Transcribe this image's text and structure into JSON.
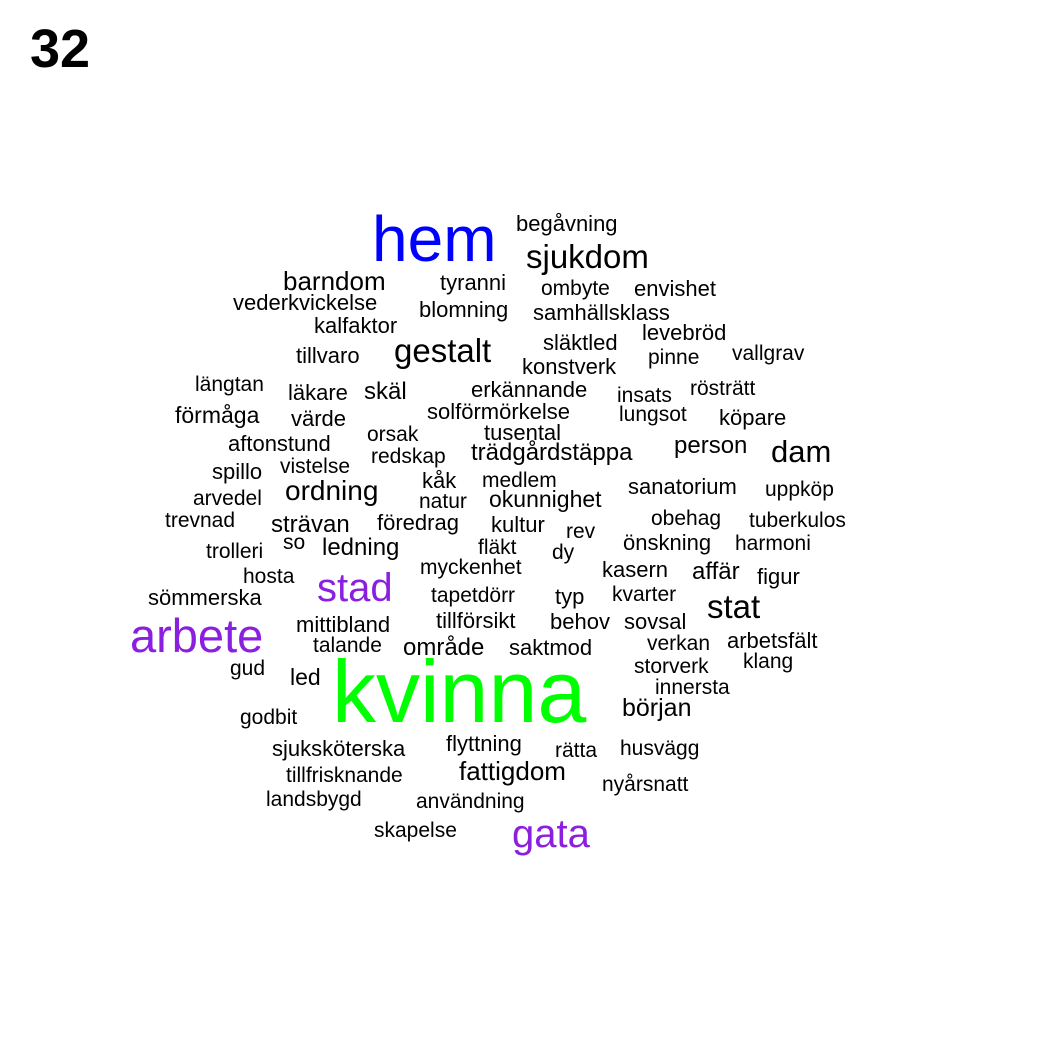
{
  "page_number": "32",
  "colors": {
    "primary": "#0000ff",
    "secondary": "#8b1fe0",
    "top": "#00ff00",
    "regular": "#000000"
  },
  "words": [
    {
      "text": "kvinna",
      "weight": 100,
      "tier": "top"
    },
    {
      "text": "hem",
      "weight": 66,
      "tier": "primary"
    },
    {
      "text": "arbete",
      "weight": 48,
      "tier": "secondary"
    },
    {
      "text": "stad",
      "weight": 42,
      "tier": "secondary"
    },
    {
      "text": "gata",
      "weight": 42,
      "tier": "secondary"
    },
    {
      "text": "sjukdom",
      "weight": 38,
      "tier": "regular"
    },
    {
      "text": "gestalt",
      "weight": 38,
      "tier": "regular"
    },
    {
      "text": "stat",
      "weight": 37,
      "tier": "regular"
    },
    {
      "text": "dam",
      "weight": 34,
      "tier": "regular"
    },
    {
      "text": "barndom",
      "weight": 30,
      "tier": "regular"
    },
    {
      "text": "ordning",
      "weight": 30,
      "tier": "regular"
    },
    {
      "text": "fattigdom",
      "weight": 29,
      "tier": "regular"
    },
    {
      "text": "början",
      "weight": 28,
      "tier": "regular"
    },
    {
      "text": "begåvning",
      "weight": 24,
      "tier": "regular"
    },
    {
      "text": "tyranni",
      "weight": 24,
      "tier": "regular"
    },
    {
      "text": "ombyte",
      "weight": 23,
      "tier": "regular"
    },
    {
      "text": "envishet",
      "weight": 24,
      "tier": "regular"
    },
    {
      "text": "vederkvickelse",
      "weight": 24,
      "tier": "regular"
    },
    {
      "text": "blomning",
      "weight": 24,
      "tier": "regular"
    },
    {
      "text": "samhällsklass",
      "weight": 24,
      "tier": "regular"
    },
    {
      "text": "kalfaktor",
      "weight": 24,
      "tier": "regular"
    },
    {
      "text": "levebröd",
      "weight": 24,
      "tier": "regular"
    },
    {
      "text": "släktled",
      "weight": 24,
      "tier": "regular"
    },
    {
      "text": "tillvaro",
      "weight": 24,
      "tier": "regular"
    },
    {
      "text": "konstverk",
      "weight": 24,
      "tier": "regular"
    },
    {
      "text": "pinne",
      "weight": 23,
      "tier": "regular"
    },
    {
      "text": "vallgrav",
      "weight": 23,
      "tier": "regular"
    },
    {
      "text": "längtan",
      "weight": 23,
      "tier": "regular"
    },
    {
      "text": "läkare",
      "weight": 24,
      "tier": "regular"
    },
    {
      "text": "skäl",
      "weight": 26,
      "tier": "regular"
    },
    {
      "text": "erkännande",
      "weight": 24,
      "tier": "regular"
    },
    {
      "text": "insats",
      "weight": 23,
      "tier": "regular"
    },
    {
      "text": "rösträtt",
      "weight": 23,
      "tier": "regular"
    },
    {
      "text": "förmåga",
      "weight": 25,
      "tier": "regular"
    },
    {
      "text": "värde",
      "weight": 24,
      "tier": "regular"
    },
    {
      "text": "solförmörkelse",
      "weight": 24,
      "tier": "regular"
    },
    {
      "text": "lungsot",
      "weight": 23,
      "tier": "regular"
    },
    {
      "text": "köpare",
      "weight": 24,
      "tier": "regular"
    },
    {
      "text": "aftonstund",
      "weight": 24,
      "tier": "regular"
    },
    {
      "text": "orsak",
      "weight": 23,
      "tier": "regular"
    },
    {
      "text": "tusental",
      "weight": 24,
      "tier": "regular"
    },
    {
      "text": "person",
      "weight": 26,
      "tier": "regular"
    },
    {
      "text": "spillo",
      "weight": 24,
      "tier": "regular"
    },
    {
      "text": "vistelse",
      "weight": 23,
      "tier": "regular"
    },
    {
      "text": "redskap",
      "weight": 23,
      "tier": "regular"
    },
    {
      "text": "trädgårdstäppa",
      "weight": 26,
      "tier": "regular"
    },
    {
      "text": "kåk",
      "weight": 24,
      "tier": "regular"
    },
    {
      "text": "medlem",
      "weight": 23,
      "tier": "regular"
    },
    {
      "text": "arvedel",
      "weight": 23,
      "tier": "regular"
    },
    {
      "text": "natur",
      "weight": 23,
      "tier": "regular"
    },
    {
      "text": "okunnighet",
      "weight": 25,
      "tier": "regular"
    },
    {
      "text": "sanatorium",
      "weight": 24,
      "tier": "regular"
    },
    {
      "text": "uppköp",
      "weight": 23,
      "tier": "regular"
    },
    {
      "text": "trevnad",
      "weight": 23,
      "tier": "regular"
    },
    {
      "text": "strävan",
      "weight": 26,
      "tier": "regular"
    },
    {
      "text": "föredrag",
      "weight": 24,
      "tier": "regular"
    },
    {
      "text": "kultur",
      "weight": 24,
      "tier": "regular"
    },
    {
      "text": "rev",
      "weight": 23,
      "tier": "regular"
    },
    {
      "text": "obehag",
      "weight": 23,
      "tier": "regular"
    },
    {
      "text": "tuberkulos",
      "weight": 23,
      "tier": "regular"
    },
    {
      "text": "trolleri",
      "weight": 23,
      "tier": "regular"
    },
    {
      "text": "so",
      "weight": 23,
      "tier": "regular"
    },
    {
      "text": "ledning",
      "weight": 26,
      "tier": "regular"
    },
    {
      "text": "fläkt",
      "weight": 23,
      "tier": "regular"
    },
    {
      "text": "dy",
      "weight": 23,
      "tier": "regular"
    },
    {
      "text": "önskning",
      "weight": 24,
      "tier": "regular"
    },
    {
      "text": "harmoni",
      "weight": 23,
      "tier": "regular"
    },
    {
      "text": "hosta",
      "weight": 23,
      "tier": "regular"
    },
    {
      "text": "myckenhet",
      "weight": 23,
      "tier": "regular"
    },
    {
      "text": "kasern",
      "weight": 24,
      "tier": "regular"
    },
    {
      "text": "affär",
      "weight": 26,
      "tier": "regular"
    },
    {
      "text": "figur",
      "weight": 24,
      "tier": "regular"
    },
    {
      "text": "sömmerska",
      "weight": 24,
      "tier": "regular"
    },
    {
      "text": "tapetdörr",
      "weight": 23,
      "tier": "regular"
    },
    {
      "text": "typ",
      "weight": 24,
      "tier": "regular"
    },
    {
      "text": "kvarter",
      "weight": 23,
      "tier": "regular"
    },
    {
      "text": "mittibland",
      "weight": 24,
      "tier": "regular"
    },
    {
      "text": "tillförsikt",
      "weight": 24,
      "tier": "regular"
    },
    {
      "text": "behov",
      "weight": 24,
      "tier": "regular"
    },
    {
      "text": "sovsal",
      "weight": 24,
      "tier": "regular"
    },
    {
      "text": "talande",
      "weight": 23,
      "tier": "regular"
    },
    {
      "text": "område",
      "weight": 26,
      "tier": "regular"
    },
    {
      "text": "saktmod",
      "weight": 24,
      "tier": "regular"
    },
    {
      "text": "verkan",
      "weight": 23,
      "tier": "regular"
    },
    {
      "text": "arbetsfält",
      "weight": 24,
      "tier": "regular"
    },
    {
      "text": "gud",
      "weight": 23,
      "tier": "regular"
    },
    {
      "text": "storverk",
      "weight": 23,
      "tier": "regular"
    },
    {
      "text": "klang",
      "weight": 23,
      "tier": "regular"
    },
    {
      "text": "led",
      "weight": 25,
      "tier": "regular"
    },
    {
      "text": "innersta",
      "weight": 23,
      "tier": "regular"
    },
    {
      "text": "godbit",
      "weight": 23,
      "tier": "regular"
    },
    {
      "text": "sjuksköterska",
      "weight": 24,
      "tier": "regular"
    },
    {
      "text": "flyttning",
      "weight": 24,
      "tier": "regular"
    },
    {
      "text": "rätta",
      "weight": 23,
      "tier": "regular"
    },
    {
      "text": "husvägg",
      "weight": 23,
      "tier": "regular"
    },
    {
      "text": "tillfrisknande",
      "weight": 23,
      "tier": "regular"
    },
    {
      "text": "nyårsnatt",
      "weight": 23,
      "tier": "regular"
    },
    {
      "text": "landsbygd",
      "weight": 23,
      "tier": "regular"
    },
    {
      "text": "användning",
      "weight": 23,
      "tier": "regular"
    },
    {
      "text": "skapelse",
      "weight": 23,
      "tier": "regular"
    }
  ]
}
